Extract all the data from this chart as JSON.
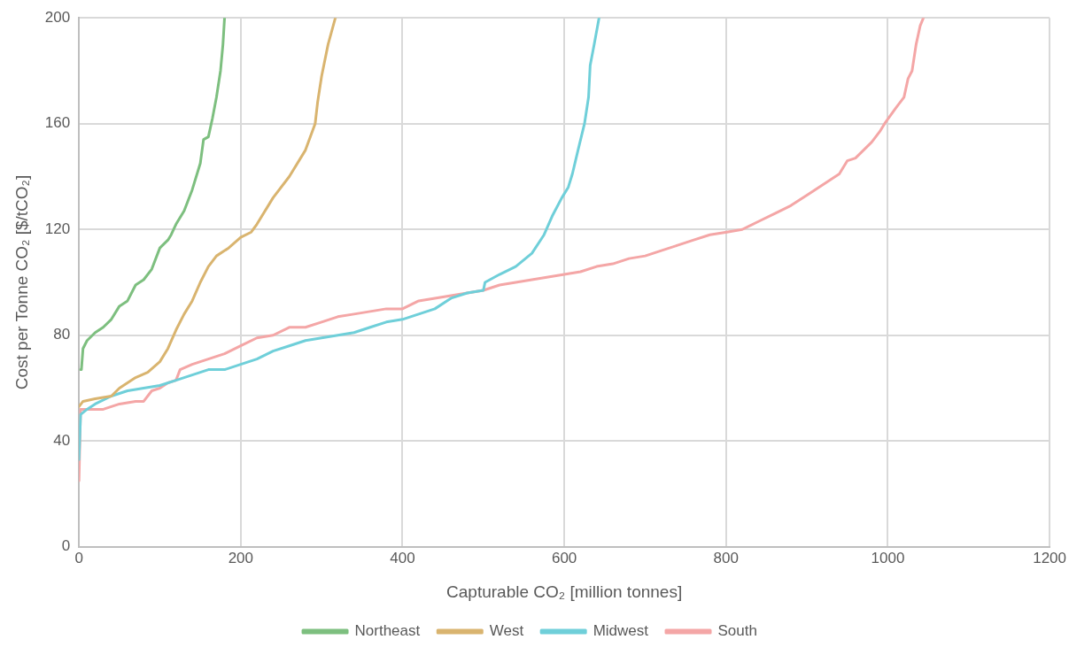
{
  "chart_data": {
    "type": "line",
    "xlabel": "Capturable CO₂ [million tonnes]",
    "ylabel": "Cost per Tonne CO₂ [$/tCO₂]",
    "xlim": [
      0,
      1200
    ],
    "xticks": [
      0,
      200,
      400,
      600,
      800,
      1000,
      1200
    ],
    "ylim": [
      0,
      200
    ],
    "yticks": [
      0,
      40,
      80,
      120,
      160,
      200
    ],
    "grid": true,
    "legend": "bottom",
    "marker": "none",
    "line_style": "solid",
    "series": [
      {
        "name": "Northeast",
        "color": "#7dbf7f",
        "x": [
          2,
          3,
          5,
          10,
          20,
          30,
          40,
          50,
          55,
          60,
          70,
          80,
          90,
          100,
          110,
          114,
          120,
          130,
          140,
          150,
          154,
          160,
          165,
          170,
          175,
          178,
          180
        ],
        "values": [
          67,
          67,
          75,
          78,
          81,
          83,
          86,
          91,
          92,
          93,
          99,
          101,
          105,
          113,
          116,
          118,
          122,
          127,
          135,
          145,
          154,
          155,
          162,
          170,
          180,
          190,
          200
        ]
      },
      {
        "name": "West",
        "color": "#d9b46f",
        "x": [
          0,
          5,
          20,
          40,
          50,
          70,
          85,
          100,
          110,
          120,
          130,
          140,
          150,
          160,
          170,
          185,
          200,
          213,
          220,
          240,
          260,
          280,
          292,
          295,
          300,
          308,
          317
        ],
        "values": [
          53,
          55,
          56,
          57,
          60,
          64,
          66,
          70,
          75,
          82,
          88,
          93,
          100,
          106,
          110,
          113,
          117,
          119,
          122,
          132,
          140,
          150,
          160,
          168,
          178,
          190,
          200
        ]
      },
      {
        "name": "Midwest",
        "color": "#6fcfd9",
        "x": [
          0,
          2,
          10,
          20,
          40,
          60,
          80,
          100,
          120,
          140,
          160,
          180,
          200,
          220,
          240,
          260,
          280,
          300,
          320,
          340,
          360,
          380,
          400,
          420,
          440,
          460,
          480,
          500,
          502,
          520,
          540,
          560,
          575,
          585,
          597,
          605,
          610,
          617,
          625,
          630,
          632,
          637,
          643
        ],
        "values": [
          33,
          50,
          52,
          54,
          57,
          59,
          60,
          61,
          63,
          65,
          67,
          67,
          69,
          71,
          74,
          76,
          78,
          79,
          80,
          81,
          83,
          85,
          86,
          88,
          90,
          94,
          96,
          97,
          100,
          103,
          106,
          111,
          118,
          125,
          132,
          136,
          141,
          150,
          160,
          170,
          182,
          190,
          200
        ]
      },
      {
        "name": "South",
        "color": "#f4a6a6",
        "x": [
          0,
          2,
          10,
          30,
          50,
          70,
          80,
          90,
          100,
          110,
          120,
          125,
          140,
          160,
          180,
          200,
          220,
          240,
          260,
          280,
          300,
          320,
          340,
          360,
          380,
          400,
          420,
          440,
          460,
          480,
          500,
          520,
          540,
          560,
          580,
          600,
          620,
          640,
          660,
          680,
          700,
          720,
          740,
          760,
          780,
          801,
          820,
          840,
          860,
          880,
          900,
          920,
          940,
          950,
          960,
          980,
          990,
          996,
          1010,
          1020,
          1025,
          1030,
          1035,
          1040,
          1044
        ],
        "values": [
          25,
          52,
          52,
          52,
          54,
          55,
          55,
          59,
          60,
          62,
          63,
          67,
          69,
          71,
          73,
          76,
          79,
          80,
          83,
          83,
          85,
          87,
          88,
          89,
          90,
          90,
          93,
          94,
          95,
          96,
          97,
          99,
          100,
          101,
          102,
          103,
          104,
          106,
          107,
          109,
          110,
          112,
          114,
          116,
          118,
          119,
          120,
          123,
          126,
          129,
          133,
          137,
          141,
          146,
          147,
          153,
          157,
          160,
          166,
          170,
          177,
          180,
          190,
          197,
          200
        ]
      }
    ]
  }
}
